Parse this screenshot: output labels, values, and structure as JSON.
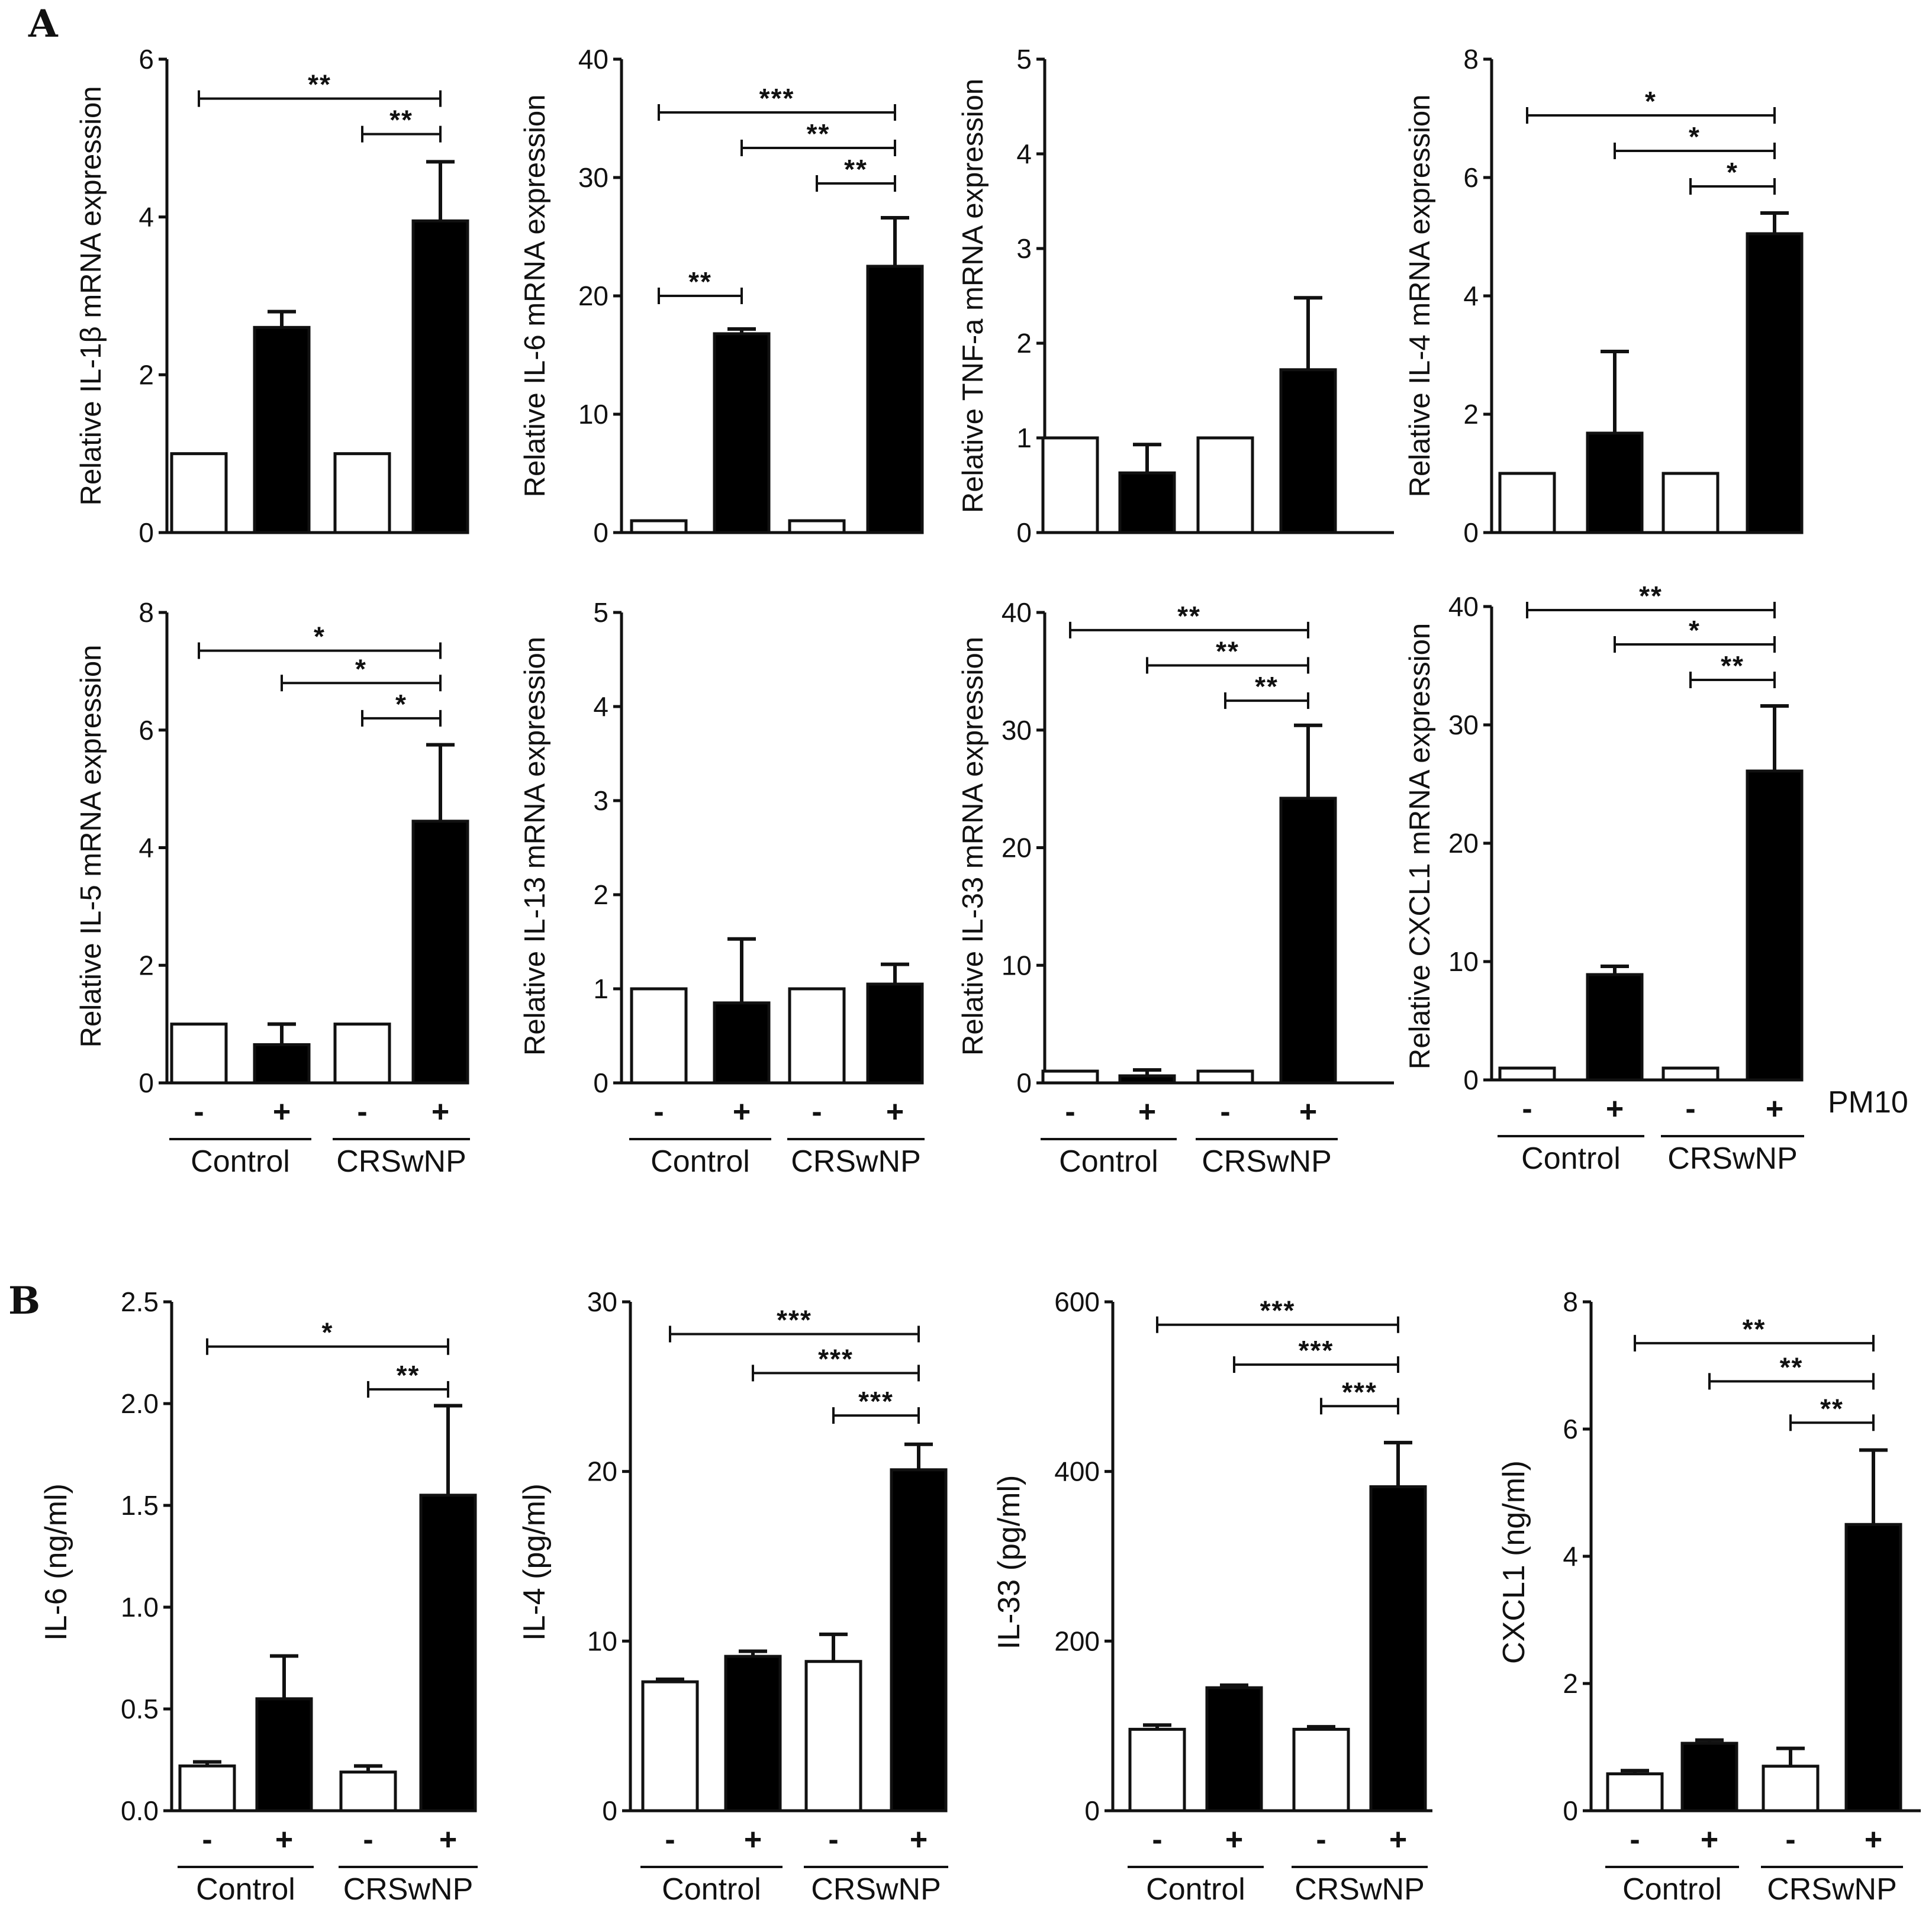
{
  "panels": {
    "A": "A",
    "B": "B"
  },
  "pm_label": "PM10",
  "conditions": [
    "-",
    "+",
    "-",
    "+"
  ],
  "groups": [
    "Control",
    "CRSwNP"
  ],
  "colors": {
    "bar_fill_minus": "#ffffff",
    "bar_fill_plus": "#000000",
    "axis": "#111111"
  },
  "chart_data": [
    {
      "id": "A1",
      "panel": "A",
      "type": "bar",
      "ylabel": "Relative IL-1β mRNA expression",
      "ylim": [
        0,
        6
      ],
      "yticks": [
        "0",
        "2",
        "4",
        "6"
      ],
      "yticks_v": [
        0,
        2,
        4,
        6
      ],
      "categories": [
        "Control -",
        "Control +",
        "CRSwNP -",
        "CRSwNP +"
      ],
      "values": [
        1.0,
        2.6,
        1.0,
        3.95
      ],
      "errors": [
        0,
        0.2,
        0,
        0.75
      ],
      "sig": [
        {
          "from": 0,
          "to": 3,
          "label": "**",
          "y": 5.5
        },
        {
          "from": 2,
          "to": 3,
          "label": "**",
          "y": 5.05
        }
      ],
      "show_x": false
    },
    {
      "id": "A2",
      "panel": "A",
      "type": "bar",
      "ylabel": "Relative IL-6 mRNA expression",
      "ylim": [
        0,
        40
      ],
      "yticks": [
        "0",
        "10",
        "20",
        "30",
        "40"
      ],
      "yticks_v": [
        0,
        10,
        20,
        30,
        40
      ],
      "categories": [
        "Control -",
        "Control +",
        "CRSwNP -",
        "CRSwNP +"
      ],
      "values": [
        1.0,
        16.8,
        1.0,
        22.5
      ],
      "errors": [
        0,
        0.4,
        0,
        4.1
      ],
      "sig": [
        {
          "from": 0,
          "to": 3,
          "label": "***",
          "y": 35.5
        },
        {
          "from": 1,
          "to": 3,
          "label": "**",
          "y": 32.5
        },
        {
          "from": 2,
          "to": 3,
          "label": "**",
          "y": 29.5
        },
        {
          "from": 0,
          "to": 1,
          "label": "**",
          "y": 20.0
        }
      ],
      "show_x": false
    },
    {
      "id": "A3",
      "panel": "A",
      "type": "bar",
      "ylabel": "Relative TNF-a mRNA expression",
      "ylim": [
        0,
        5
      ],
      "yticks": [
        "0",
        "1",
        "2",
        "3",
        "4",
        "5"
      ],
      "yticks_v": [
        0,
        1,
        2,
        3,
        4,
        5
      ],
      "categories": [
        "Control -",
        "Control +",
        "CRSwNP -",
        "CRSwNP +"
      ],
      "values": [
        1.0,
        0.63,
        1.0,
        1.72
      ],
      "errors": [
        0,
        0.3,
        0,
        0.76
      ],
      "sig": [],
      "show_x": false
    },
    {
      "id": "A4",
      "panel": "A",
      "type": "bar",
      "ylabel": "Relative IL-4 mRNA expression",
      "ylim": [
        0,
        8
      ],
      "yticks": [
        "0",
        "2",
        "4",
        "6",
        "8"
      ],
      "yticks_v": [
        0,
        2,
        4,
        6,
        8
      ],
      "categories": [
        "Control -",
        "Control +",
        "CRSwNP -",
        "CRSwNP +"
      ],
      "values": [
        1.0,
        1.68,
        1.0,
        5.05
      ],
      "errors": [
        0,
        1.38,
        0,
        0.35
      ],
      "sig": [
        {
          "from": 0,
          "to": 3,
          "label": "*",
          "y": 7.05
        },
        {
          "from": 1,
          "to": 3,
          "label": "*",
          "y": 6.45
        },
        {
          "from": 2,
          "to": 3,
          "label": "*",
          "y": 5.85
        }
      ],
      "show_x": false
    },
    {
      "id": "A5",
      "panel": "A",
      "type": "bar",
      "ylabel": "Relative IL-5 mRNA expression",
      "ylim": [
        0,
        8
      ],
      "yticks": [
        "0",
        "2",
        "4",
        "6",
        "8"
      ],
      "yticks_v": [
        0,
        2,
        4,
        6,
        8
      ],
      "categories": [
        "Control -",
        "Control +",
        "CRSwNP -",
        "CRSwNP +"
      ],
      "values": [
        1.0,
        0.65,
        1.0,
        4.45
      ],
      "errors": [
        0,
        0.35,
        0,
        1.3
      ],
      "sig": [
        {
          "from": 0,
          "to": 3,
          "label": "*",
          "y": 7.35
        },
        {
          "from": 1,
          "to": 3,
          "label": "*",
          "y": 6.8
        },
        {
          "from": 2,
          "to": 3,
          "label": "*",
          "y": 6.2
        }
      ],
      "show_x": true
    },
    {
      "id": "A6",
      "panel": "A",
      "type": "bar",
      "ylabel": "Relative IL-13 mRNA expression",
      "ylim": [
        0,
        5
      ],
      "yticks": [
        "0",
        "1",
        "2",
        "3",
        "4",
        "5"
      ],
      "yticks_v": [
        0,
        1,
        2,
        3,
        4,
        5
      ],
      "categories": [
        "Control -",
        "Control +",
        "CRSwNP -",
        "CRSwNP +"
      ],
      "values": [
        1.0,
        0.85,
        1.0,
        1.05
      ],
      "errors": [
        0,
        0.68,
        0,
        0.21
      ],
      "sig": [],
      "show_x": true
    },
    {
      "id": "A7",
      "panel": "A",
      "type": "bar",
      "ylabel": "Relative IL-33 mRNA expression",
      "ylim": [
        0,
        40
      ],
      "yticks": [
        "0",
        "10",
        "20",
        "30",
        "40"
      ],
      "yticks_v": [
        0,
        10,
        20,
        30,
        40
      ],
      "categories": [
        "Control -",
        "Control +",
        "CRSwNP -",
        "CRSwNP +"
      ],
      "values": [
        1.0,
        0.6,
        1.0,
        24.2
      ],
      "errors": [
        0,
        0.5,
        0,
        6.2
      ],
      "sig": [
        {
          "from": 0,
          "to": 3,
          "label": "**",
          "y": 38.5
        },
        {
          "from": 1,
          "to": 3,
          "label": "**",
          "y": 35.5
        },
        {
          "from": 2,
          "to": 3,
          "label": "**",
          "y": 32.5
        }
      ],
      "show_x": true
    },
    {
      "id": "A8",
      "panel": "A",
      "type": "bar",
      "ylabel": "Relative CXCL1 mRNA expression",
      "ylim": [
        0,
        40
      ],
      "yticks": [
        "0",
        "10",
        "20",
        "30",
        "40"
      ],
      "yticks_v": [
        0,
        10,
        20,
        30,
        40
      ],
      "categories": [
        "Control -",
        "Control +",
        "CRSwNP -",
        "CRSwNP +"
      ],
      "values": [
        1.0,
        8.9,
        1.0,
        26.1
      ],
      "errors": [
        0,
        0.7,
        0,
        5.5
      ],
      "sig": [
        {
          "from": 0,
          "to": 3,
          "label": "**",
          "y": 39.7
        },
        {
          "from": 1,
          "to": 3,
          "label": "*",
          "y": 36.8
        },
        {
          "from": 2,
          "to": 3,
          "label": "**",
          "y": 33.8
        }
      ],
      "show_x": true
    },
    {
      "id": "B1",
      "panel": "B",
      "type": "bar",
      "ylabel": "IL-6 (ng/ml)",
      "ylim": [
        0,
        2.5
      ],
      "yticks": [
        "0.0",
        "0.5",
        "1.0",
        "1.5",
        "2.0",
        "2.5"
      ],
      "yticks_v": [
        0,
        0.5,
        1.0,
        1.5,
        2.0,
        2.5
      ],
      "categories": [
        "Control -",
        "Control +",
        "CRSwNP -",
        "CRSwNP +"
      ],
      "values": [
        0.22,
        0.55,
        0.19,
        1.55
      ],
      "errors": [
        0.02,
        0.21,
        0.03,
        0.44
      ],
      "sig": [
        {
          "from": 0,
          "to": 3,
          "label": "*",
          "y": 2.28
        },
        {
          "from": 2,
          "to": 3,
          "label": "**",
          "y": 2.07
        }
      ],
      "show_x": true
    },
    {
      "id": "B2",
      "panel": "B",
      "type": "bar",
      "ylabel": "IL-4 (pg/ml)",
      "ylim": [
        0,
        30
      ],
      "yticks": [
        "0",
        "10",
        "20",
        "30"
      ],
      "yticks_v": [
        0,
        10,
        20,
        30
      ],
      "categories": [
        "Control -",
        "Control +",
        "CRSwNP -",
        "CRSwNP +"
      ],
      "values": [
        7.6,
        9.1,
        8.8,
        20.1
      ],
      "errors": [
        0.15,
        0.3,
        1.6,
        1.5
      ],
      "sig": [
        {
          "from": 0,
          "to": 3,
          "label": "***",
          "y": 28.1
        },
        {
          "from": 1,
          "to": 3,
          "label": "***",
          "y": 25.8
        },
        {
          "from": 2,
          "to": 3,
          "label": "***",
          "y": 23.3
        }
      ],
      "show_x": true
    },
    {
      "id": "B3",
      "panel": "B",
      "type": "bar",
      "ylabel": "IL-33 (pg/ml)",
      "ylim": [
        0,
        600
      ],
      "yticks": [
        "0",
        "200",
        "400",
        "600"
      ],
      "yticks_v": [
        0,
        200,
        400,
        600
      ],
      "categories": [
        "Control -",
        "Control +",
        "CRSwNP -",
        "CRSwNP +"
      ],
      "values": [
        96,
        145,
        96,
        382
      ],
      "errors": [
        5,
        3,
        3,
        52
      ],
      "sig": [
        {
          "from": 0,
          "to": 3,
          "label": "***",
          "y": 573
        },
        {
          "from": 1,
          "to": 3,
          "label": "***",
          "y": 526
        },
        {
          "from": 2,
          "to": 3,
          "label": "***",
          "y": 477
        }
      ],
      "show_x": true
    },
    {
      "id": "B4",
      "panel": "B",
      "type": "bar",
      "ylabel": "CXCL1 (ng/ml)",
      "ylim": [
        0,
        8
      ],
      "yticks": [
        "0",
        "2",
        "4",
        "6",
        "8"
      ],
      "yticks_v": [
        0,
        2,
        4,
        6,
        8
      ],
      "categories": [
        "Control -",
        "Control +",
        "CRSwNP -",
        "CRSwNP +"
      ],
      "values": [
        0.58,
        1.06,
        0.7,
        4.5
      ],
      "errors": [
        0.05,
        0.05,
        0.28,
        1.17
      ],
      "sig": [
        {
          "from": 0,
          "to": 3,
          "label": "**",
          "y": 7.35
        },
        {
          "from": 1,
          "to": 3,
          "label": "**",
          "y": 6.75
        },
        {
          "from": 2,
          "to": 3,
          "label": "**",
          "y": 6.1
        }
      ],
      "show_x": true
    }
  ]
}
